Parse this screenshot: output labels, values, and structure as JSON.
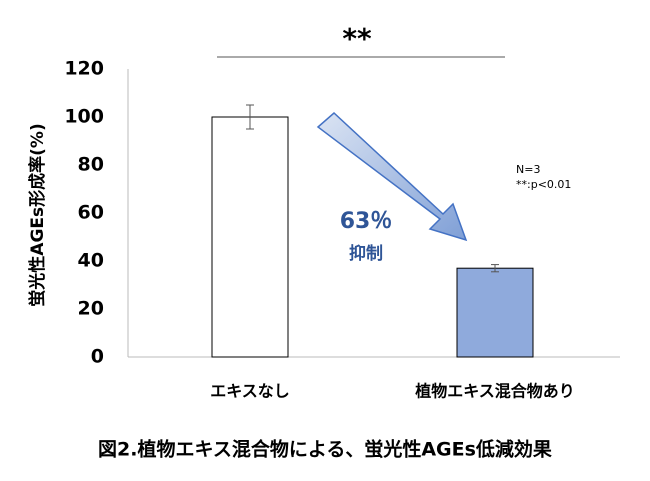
{
  "chart_data": {
    "type": "bar",
    "caption": "図2.植物エキス混合物による、蛍光性AGEs低減効果",
    "y_label": "蛍光性AGEs形成率(%)",
    "categories": [
      "エキスなし",
      "植物エキス混合物あり"
    ],
    "values": [
      100,
      37
    ],
    "errors": [
      5,
      1.5
    ],
    "colors": [
      "#ffffff",
      "#8faadc"
    ],
    "ylim": [
      0,
      120
    ],
    "yticks": [
      0,
      20,
      40,
      60,
      80,
      100,
      120
    ],
    "grid": false,
    "significance": "**",
    "reduction": "63％",
    "reduction_label": "抑制",
    "notes": [
      "N=3",
      "**:p<0.01"
    ]
  }
}
